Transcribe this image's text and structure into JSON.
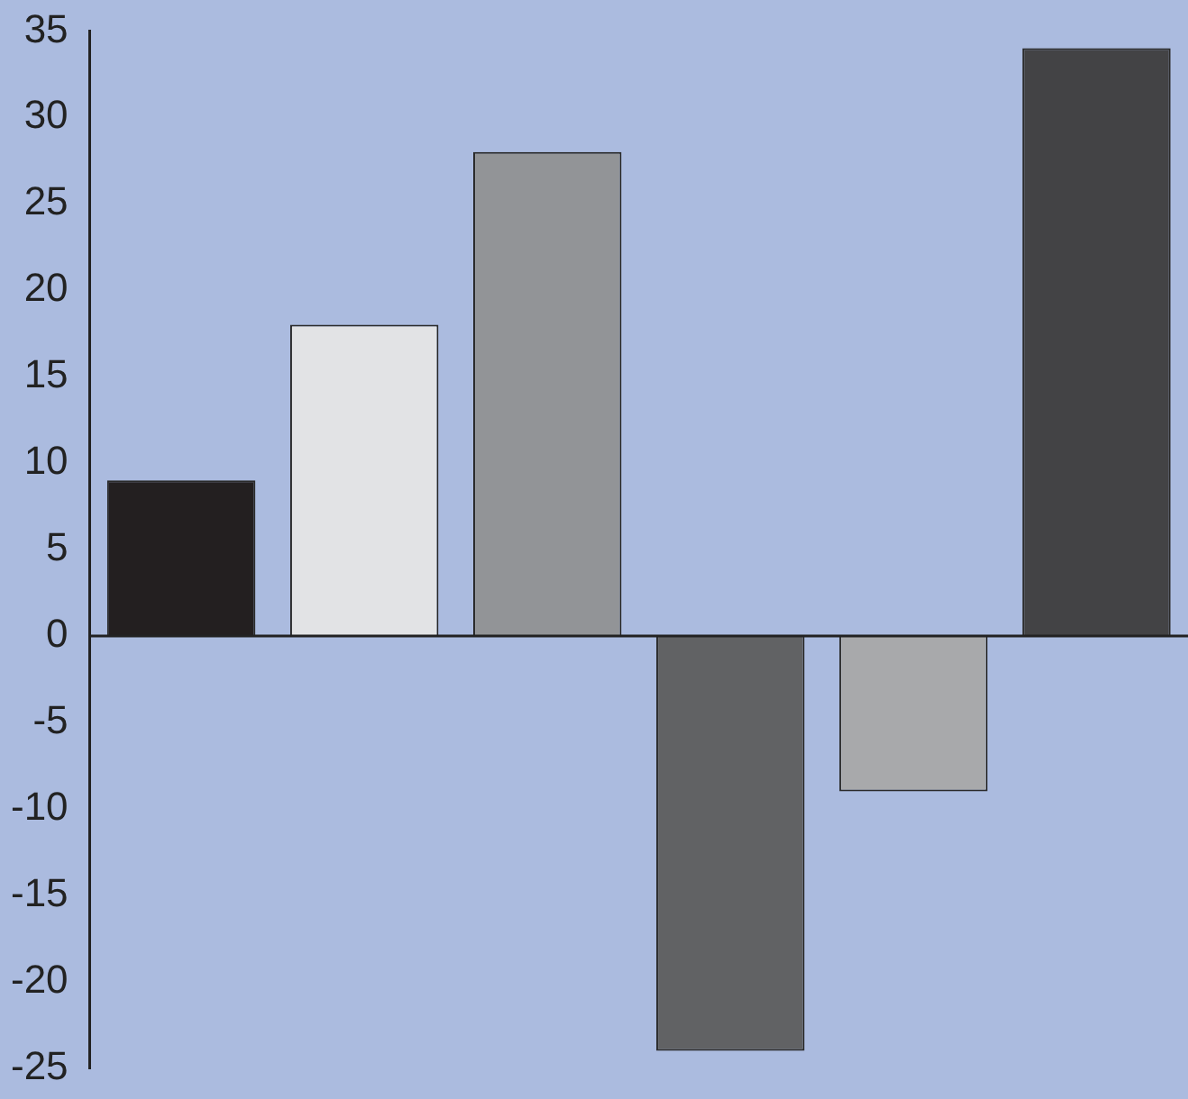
{
  "chart_data": {
    "type": "bar",
    "categories": [
      null,
      null,
      null,
      null,
      null,
      null
    ],
    "values": [
      9,
      18,
      28,
      -24,
      -9,
      34
    ],
    "colors": [
      "#231f20",
      "#e2e3e5",
      "#929497",
      "#616264",
      "#a8a9ab",
      "#434345"
    ],
    "ylim": [
      -25,
      35
    ],
    "yticks": [
      -25,
      -20,
      -15,
      -10,
      -5,
      0,
      5,
      10,
      15,
      20,
      25,
      30,
      35
    ],
    "ref_lines": [
      {
        "axis": "y",
        "value": 0,
        "color": "#222222"
      }
    ],
    "grid": false,
    "legend": false
  }
}
